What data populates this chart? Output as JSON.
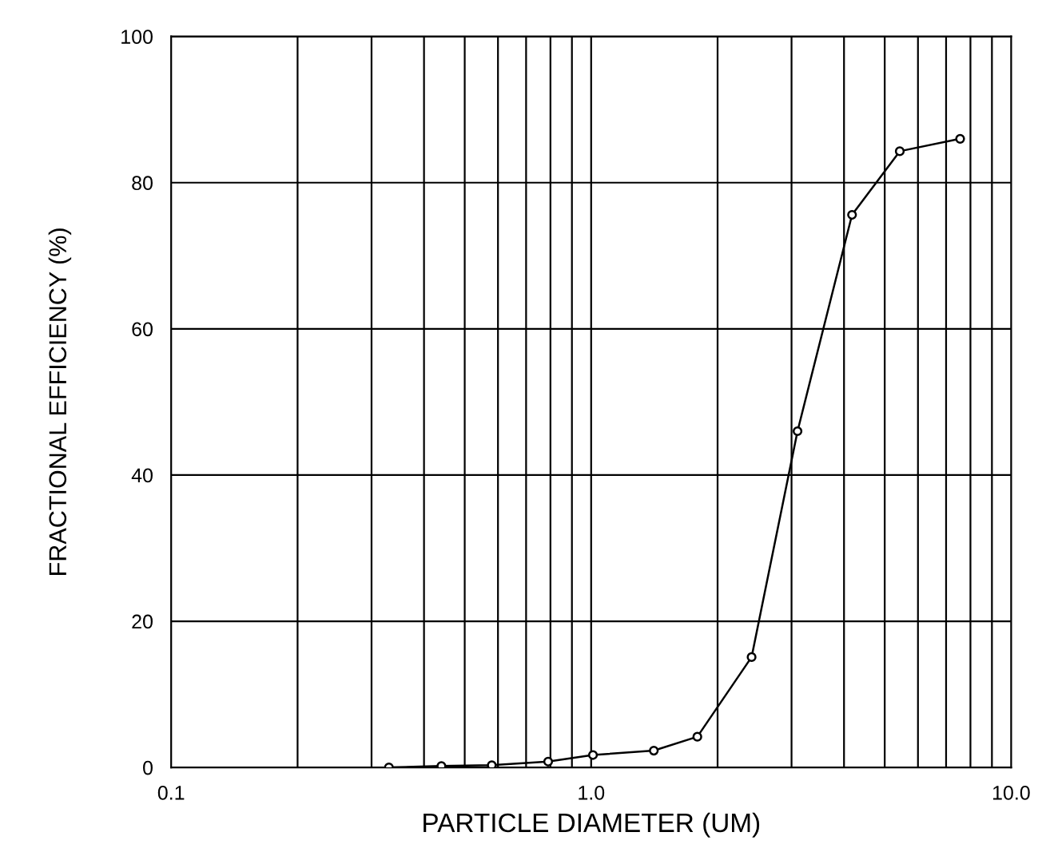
{
  "chart_data": {
    "type": "line",
    "xlabel": "PARTICLE DIAMETER (UM)",
    "ylabel": "FRACTIONAL EFFICIENCY (%)",
    "x": [
      0.33,
      0.44,
      0.58,
      0.79,
      1.01,
      1.41,
      1.79,
      2.41,
      3.1,
      4.18,
      5.43,
      7.56
    ],
    "series": [
      {
        "color": "#000000",
        "values": [
          0,
          0.2,
          0.3,
          0.8,
          1.7,
          2.3,
          4.2,
          15.1,
          46,
          75.6,
          84.3,
          86.0
        ]
      }
    ],
    "log": "x",
    "xlim": [
      0.1,
      10
    ],
    "xticks": [
      {
        "value": 0.1,
        "label": "0.1"
      },
      {
        "value": 1,
        "label": "1.0"
      },
      {
        "value": 10,
        "label": "10.0"
      }
    ],
    "ylim": [
      0,
      100
    ],
    "yticks": [
      0,
      20,
      40,
      60,
      80,
      100
    ],
    "grid": true,
    "marker": "circle",
    "line_style": "solid",
    "legend": false
  }
}
